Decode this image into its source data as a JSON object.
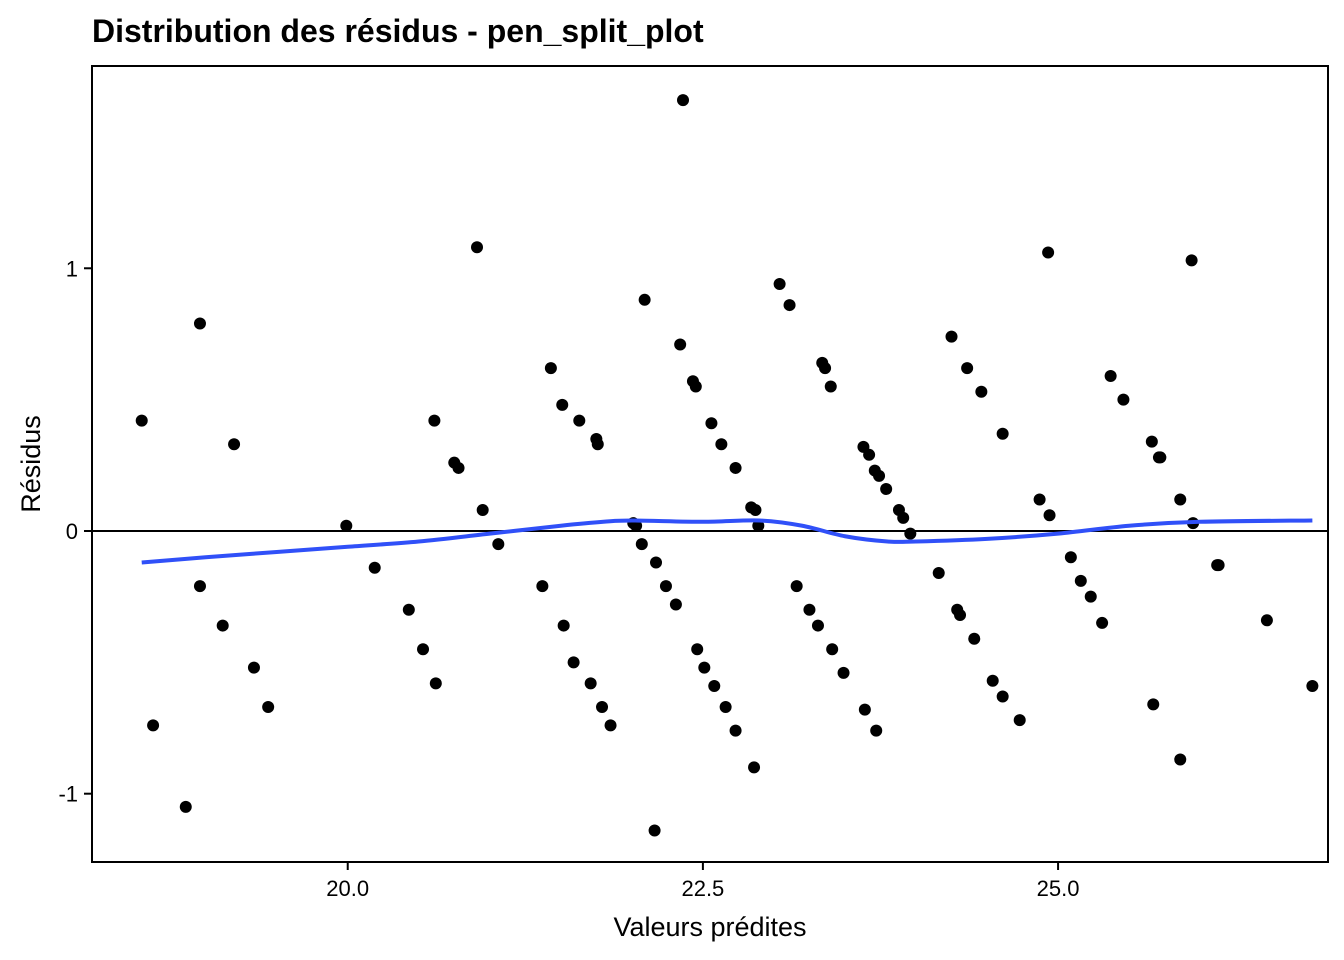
{
  "chart_data": {
    "type": "scatter",
    "title": "Distribution des résidus - pen_split_plot",
    "xlabel": "Valeurs prédites",
    "ylabel": "Résidus",
    "xlim": [
      18.2,
      26.9
    ],
    "ylim": [
      -1.26,
      1.77
    ],
    "x_ticks": [
      20.0,
      22.5,
      25.0
    ],
    "x_tick_labels": [
      "20.0",
      "22.5",
      "25.0"
    ],
    "y_ticks": [
      -1,
      0,
      1
    ],
    "y_tick_labels": [
      "-1",
      "0",
      "1"
    ],
    "hline": 0,
    "point_color": "#000000",
    "smooth_color": "#3050F8",
    "points": [
      [
        18.55,
        0.42
      ],
      [
        18.63,
        -0.74
      ],
      [
        18.86,
        -1.05
      ],
      [
        18.96,
        0.79
      ],
      [
        18.96,
        -0.21
      ],
      [
        19.2,
        0.33
      ],
      [
        19.12,
        -0.36
      ],
      [
        19.34,
        -0.52
      ],
      [
        19.44,
        -0.67
      ],
      [
        19.99,
        0.02
      ],
      [
        20.19,
        -0.14
      ],
      [
        20.43,
        -0.3
      ],
      [
        20.53,
        -0.45
      ],
      [
        20.61,
        0.42
      ],
      [
        20.62,
        -0.58
      ],
      [
        20.75,
        0.26
      ],
      [
        20.78,
        0.24
      ],
      [
        20.91,
        1.08
      ],
      [
        20.95,
        0.08
      ],
      [
        21.06,
        -0.05
      ],
      [
        21.37,
        -0.21
      ],
      [
        21.43,
        0.62
      ],
      [
        21.52,
        -0.36
      ],
      [
        21.51,
        0.48
      ],
      [
        21.59,
        -0.5
      ],
      [
        21.63,
        0.42
      ],
      [
        21.71,
        -0.58
      ],
      [
        21.75,
        0.35
      ],
      [
        21.76,
        0.33
      ],
      [
        21.79,
        -0.67
      ],
      [
        21.85,
        -0.74
      ],
      [
        22.01,
        0.03
      ],
      [
        22.03,
        0.02
      ],
      [
        22.07,
        -0.05
      ],
      [
        22.09,
        0.88
      ],
      [
        22.17,
        -0.12
      ],
      [
        22.16,
        -1.14
      ],
      [
        22.24,
        -0.21
      ],
      [
        22.31,
        -0.28
      ],
      [
        22.34,
        0.71
      ],
      [
        22.36,
        1.64
      ],
      [
        22.43,
        0.57
      ],
      [
        22.45,
        0.55
      ],
      [
        22.46,
        -0.45
      ],
      [
        22.51,
        -0.52
      ],
      [
        22.56,
        0.41
      ],
      [
        22.58,
        -0.59
      ],
      [
        22.63,
        0.33
      ],
      [
        22.66,
        -0.67
      ],
      [
        22.73,
        0.24
      ],
      [
        22.73,
        -0.76
      ],
      [
        22.84,
        0.09
      ],
      [
        22.86,
        -0.9
      ],
      [
        22.87,
        0.08
      ],
      [
        22.89,
        0.02
      ],
      [
        23.04,
        0.94
      ],
      [
        23.11,
        0.86
      ],
      [
        23.16,
        -0.21
      ],
      [
        23.25,
        -0.3
      ],
      [
        23.31,
        -0.36
      ],
      [
        23.34,
        0.64
      ],
      [
        23.36,
        0.62
      ],
      [
        23.4,
        0.55
      ],
      [
        23.41,
        -0.45
      ],
      [
        23.49,
        -0.54
      ],
      [
        23.63,
        0.32
      ],
      [
        23.64,
        -0.68
      ],
      [
        23.67,
        0.29
      ],
      [
        23.71,
        0.23
      ],
      [
        23.72,
        -0.76
      ],
      [
        23.74,
        0.21
      ],
      [
        23.79,
        0.16
      ],
      [
        23.88,
        0.08
      ],
      [
        23.91,
        0.05
      ],
      [
        23.96,
        -0.01
      ],
      [
        24.16,
        -0.16
      ],
      [
        24.25,
        0.74
      ],
      [
        24.29,
        -0.3
      ],
      [
        24.31,
        -0.32
      ],
      [
        24.36,
        0.62
      ],
      [
        24.41,
        -0.41
      ],
      [
        24.46,
        0.53
      ],
      [
        24.54,
        -0.57
      ],
      [
        24.61,
        0.37
      ],
      [
        24.61,
        -0.63
      ],
      [
        24.73,
        -0.72
      ],
      [
        24.87,
        0.12
      ],
      [
        24.93,
        1.06
      ],
      [
        24.94,
        0.06
      ],
      [
        25.09,
        -0.1
      ],
      [
        25.16,
        -0.19
      ],
      [
        25.23,
        -0.25
      ],
      [
        25.31,
        -0.35
      ],
      [
        25.37,
        0.59
      ],
      [
        25.46,
        0.5
      ],
      [
        25.66,
        0.34
      ],
      [
        25.67,
        -0.66
      ],
      [
        25.71,
        0.28
      ],
      [
        25.72,
        0.28
      ],
      [
        25.86,
        0.12
      ],
      [
        25.86,
        -0.87
      ],
      [
        25.94,
        1.03
      ],
      [
        25.95,
        0.03
      ],
      [
        26.12,
        -0.13
      ],
      [
        26.13,
        -0.13
      ],
      [
        26.47,
        -0.34
      ],
      [
        26.79,
        -0.59
      ]
    ],
    "smooth_curve": [
      [
        18.55,
        -0.12
      ],
      [
        19.0,
        -0.1
      ],
      [
        19.5,
        -0.08
      ],
      [
        20.0,
        -0.06
      ],
      [
        20.5,
        -0.04
      ],
      [
        21.0,
        -0.01
      ],
      [
        21.5,
        0.02
      ],
      [
        21.8,
        0.035
      ],
      [
        22.0,
        0.04
      ],
      [
        22.5,
        0.035
      ],
      [
        22.9,
        0.04
      ],
      [
        23.2,
        0.02
      ],
      [
        23.5,
        -0.02
      ],
      [
        23.8,
        -0.04
      ],
      [
        24.0,
        -0.04
      ],
      [
        24.5,
        -0.03
      ],
      [
        25.0,
        -0.01
      ],
      [
        25.5,
        0.02
      ],
      [
        26.0,
        0.035
      ],
      [
        26.79,
        0.04
      ]
    ]
  }
}
